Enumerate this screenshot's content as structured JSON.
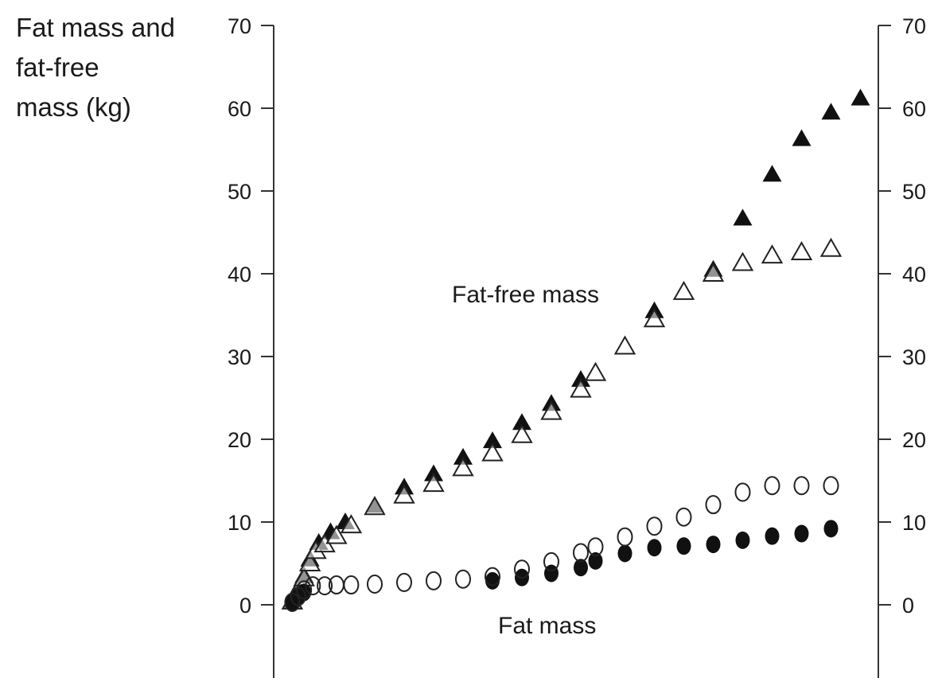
{
  "chart_data": {
    "type": "scatter",
    "ylabel_lines": [
      "Fat mass and",
      "fat-free",
      "mass (kg)"
    ],
    "series_labels": {
      "fat_free": "Fat-free mass",
      "fat": "Fat mass"
    },
    "ylim": [
      -8,
      70
    ],
    "yticks": [
      0,
      10,
      20,
      30,
      40,
      50,
      60,
      70
    ],
    "xlim": [
      0,
      20
    ],
    "grid": false,
    "colors": {
      "axis": "#333333",
      "filled": "#111111",
      "open_stroke": "#222222",
      "tick_text": "#1a1a1a"
    },
    "series": [
      {
        "marker": "triangle-filled",
        "points": [
          [
            0.2,
            0.5
          ],
          [
            0.4,
            2.0
          ],
          [
            0.6,
            3.5
          ],
          [
            0.8,
            5.5
          ],
          [
            1.1,
            7.5
          ],
          [
            1.5,
            8.8
          ],
          [
            2.0,
            10.0
          ],
          [
            3.0,
            12.0
          ],
          [
            4.0,
            14.2
          ],
          [
            5.0,
            15.8
          ],
          [
            6.0,
            17.8
          ],
          [
            7.0,
            19.8
          ],
          [
            8.0,
            22.0
          ],
          [
            9.0,
            24.3
          ],
          [
            10.0,
            27.2
          ],
          [
            12.5,
            35.5
          ],
          [
            14.5,
            40.5
          ],
          [
            15.5,
            46.7
          ],
          [
            16.5,
            52.0
          ],
          [
            17.5,
            56.3
          ],
          [
            18.5,
            59.5
          ],
          [
            19.5,
            61.2
          ]
        ]
      },
      {
        "marker": "triangle-open",
        "points": [
          [
            0.2,
            0.4
          ],
          [
            0.4,
            1.8
          ],
          [
            0.6,
            3.2
          ],
          [
            0.8,
            5.0
          ],
          [
            1.0,
            6.5
          ],
          [
            1.3,
            7.3
          ],
          [
            1.7,
            8.3
          ],
          [
            2.2,
            9.6
          ],
          [
            3.0,
            11.8
          ],
          [
            4.0,
            13.2
          ],
          [
            5.0,
            14.6
          ],
          [
            6.0,
            16.5
          ],
          [
            7.0,
            18.3
          ],
          [
            8.0,
            20.5
          ],
          [
            9.0,
            23.3
          ],
          [
            10.0,
            26.0
          ],
          [
            10.5,
            28.0
          ],
          [
            11.5,
            31.2
          ],
          [
            12.5,
            34.5
          ],
          [
            13.5,
            37.8
          ],
          [
            14.5,
            40.0
          ],
          [
            15.5,
            41.3
          ],
          [
            16.5,
            42.2
          ],
          [
            17.5,
            42.6
          ],
          [
            18.5,
            43.0
          ]
        ]
      },
      {
        "marker": "circle-filled",
        "points": [
          [
            0.2,
            0.2
          ],
          [
            0.4,
            0.9
          ],
          [
            0.6,
            1.5
          ],
          [
            7.0,
            2.9
          ],
          [
            8.0,
            3.3
          ],
          [
            9.0,
            3.8
          ],
          [
            10.0,
            4.5
          ],
          [
            10.5,
            5.3
          ],
          [
            11.5,
            6.2
          ],
          [
            12.5,
            6.9
          ],
          [
            13.5,
            7.1
          ],
          [
            14.5,
            7.3
          ],
          [
            15.5,
            7.8
          ],
          [
            16.5,
            8.3
          ],
          [
            17.5,
            8.6
          ],
          [
            18.5,
            9.2
          ]
        ]
      },
      {
        "marker": "circle-open",
        "points": [
          [
            0.2,
            0.3
          ],
          [
            0.4,
            1.0
          ],
          [
            0.6,
            1.8
          ],
          [
            0.9,
            2.3
          ],
          [
            1.3,
            2.3
          ],
          [
            1.7,
            2.4
          ],
          [
            2.2,
            2.4
          ],
          [
            3.0,
            2.5
          ],
          [
            4.0,
            2.7
          ],
          [
            5.0,
            2.9
          ],
          [
            6.0,
            3.1
          ],
          [
            7.0,
            3.4
          ],
          [
            8.0,
            4.3
          ],
          [
            9.0,
            5.2
          ],
          [
            10.0,
            6.3
          ],
          [
            10.5,
            7.0
          ],
          [
            11.5,
            8.2
          ],
          [
            12.5,
            9.5
          ],
          [
            13.5,
            10.6
          ],
          [
            14.5,
            12.1
          ],
          [
            15.5,
            13.6
          ],
          [
            16.5,
            14.4
          ],
          [
            17.5,
            14.4
          ],
          [
            18.5,
            14.4
          ]
        ]
      }
    ]
  }
}
